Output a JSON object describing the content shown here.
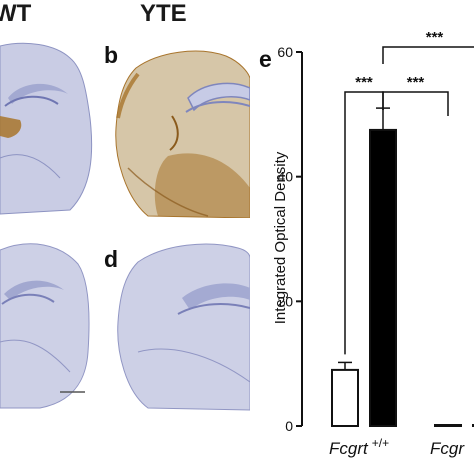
{
  "figure": {
    "column_titles": [
      "WT",
      "YTE"
    ],
    "panel_letters": [
      "b",
      "d",
      "e"
    ],
    "stain_colors": {
      "tissue_fill": "#c9cce4",
      "tissue_line": "#8d93c2",
      "dab_brown": "#a8742c",
      "background": "#ffffff"
    }
  },
  "chart_data": {
    "type": "bar",
    "ylabel": "Integrated Optical Density",
    "ylim": [
      0,
      60
    ],
    "yticks": [
      "0",
      "20",
      "40",
      "60"
    ],
    "categories": [
      "Fcgrt +/+ WT",
      "Fcgrt +/+ YTE",
      "Fcgr... WT",
      "Fcgr... YTE"
    ],
    "values": [
      9,
      47.5,
      0.1,
      0.1
    ],
    "errors": [
      1.2,
      3.5,
      0,
      0
    ],
    "fills": [
      "#ffffff",
      "#000000",
      "#ffffff",
      "#000000"
    ],
    "group_labels": [
      {
        "italic": "Fcgrt",
        "sup": "+/+"
      },
      {
        "italic": "Fcgr",
        "sup": ""
      }
    ],
    "significance": [
      {
        "label": "***",
        "from": 0,
        "to": 1
      },
      {
        "label": "***",
        "from": 1,
        "to": 2
      },
      {
        "label": "***",
        "from": 1,
        "to": 3
      }
    ]
  }
}
